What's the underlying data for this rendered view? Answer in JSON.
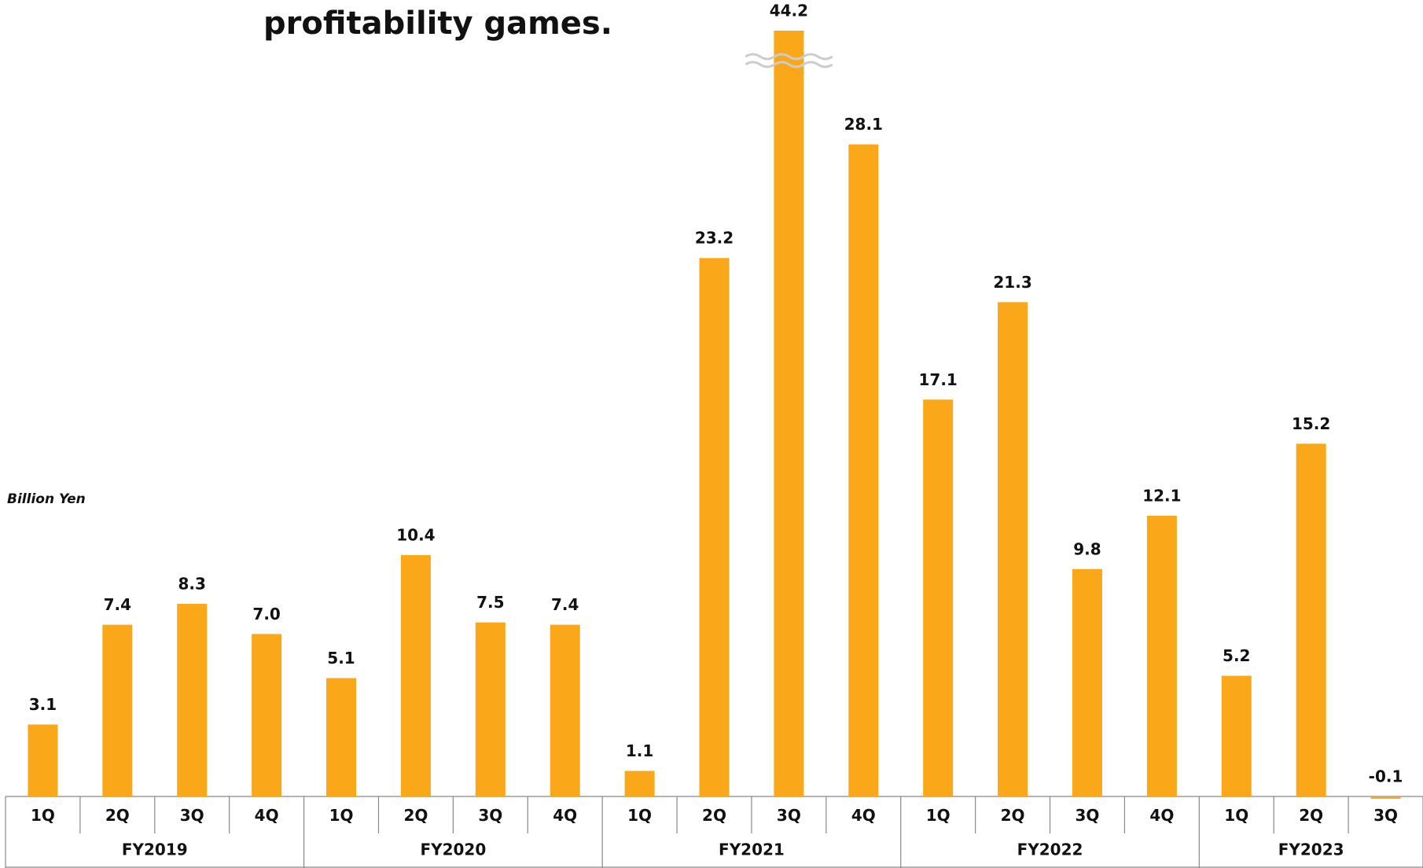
{
  "chart_data": {
    "type": "bar",
    "title": "profitability games.",
    "y_label": "Billion Yen",
    "groups": [
      {
        "name": "FY2019",
        "categories": [
          "1Q",
          "2Q",
          "3Q",
          "4Q"
        ]
      },
      {
        "name": "FY2020",
        "categories": [
          "1Q",
          "2Q",
          "3Q",
          "4Q"
        ]
      },
      {
        "name": "FY2021",
        "categories": [
          "1Q",
          "2Q",
          "3Q",
          "4Q"
        ]
      },
      {
        "name": "FY2022",
        "categories": [
          "1Q",
          "2Q",
          "3Q",
          "4Q"
        ]
      },
      {
        "name": "FY2023",
        "categories": [
          "1Q",
          "2Q",
          "3Q"
        ]
      }
    ],
    "values": [
      3.1,
      7.4,
      8.3,
      7.0,
      5.1,
      10.4,
      7.5,
      7.4,
      1.1,
      23.2,
      44.2,
      28.1,
      17.1,
      21.3,
      9.8,
      12.1,
      5.2,
      15.2,
      -0.1
    ],
    "value_labels": [
      "3.1",
      "7.4",
      "8.3",
      "7.0",
      "5.1",
      "10.4",
      "7.5",
      "7.4",
      "1.1",
      "23.2",
      "44.2",
      "28.1",
      "17.1",
      "21.3",
      "9.8",
      "12.1",
      "5.2",
      "15.2",
      "-0.1"
    ],
    "color": "#faa819",
    "ylim": [
      0,
      33
    ],
    "axis_break": true
  }
}
